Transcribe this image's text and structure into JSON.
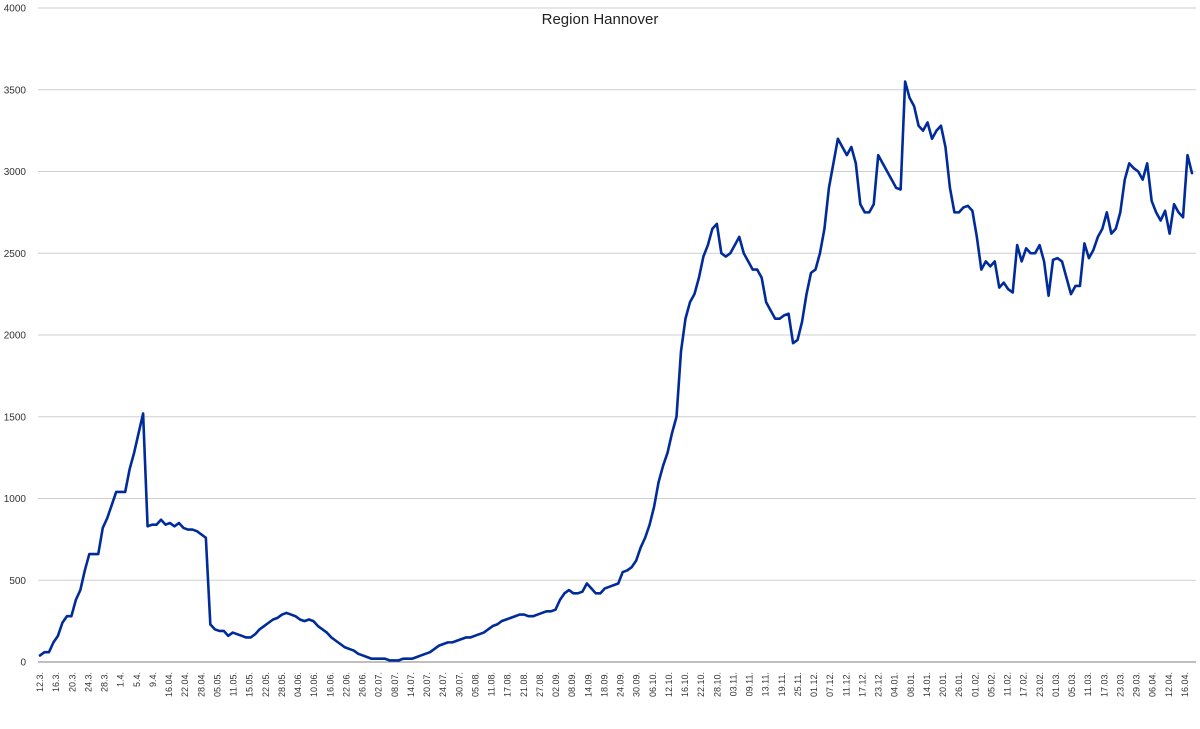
{
  "chart_data": {
    "type": "line",
    "title": "Region Hannover",
    "xlabel": "",
    "ylabel": "",
    "ylim": [
      0,
      4000
    ],
    "yticks": [
      0,
      500,
      1000,
      1500,
      2000,
      2500,
      3000,
      3500,
      4000
    ],
    "grid": true,
    "legend": "none",
    "colors": {
      "line": "#002b9a",
      "grid": "#cfcfcf",
      "axis": "#7f7f7f"
    },
    "tick_labels": [
      "12.3.",
      "16.3.",
      "20.3.",
      "24.3.",
      "28.3.",
      "1.4.",
      "5.4.",
      "9.4.",
      "16.04.",
      "22.04.",
      "28.04.",
      "05.05.",
      "11.05.",
      "15.05.",
      "22.05.",
      "28.05.",
      "04.06.",
      "10.06.",
      "16.06.",
      "22.06.",
      "26.06.",
      "02.07.",
      "08.07.",
      "14.07.",
      "20.07.",
      "24.07.",
      "30.07.",
      "05.08.",
      "11.08.",
      "17.08.",
      "21.08.",
      "27.08.",
      "02.09.",
      "08.09.",
      "14.09.",
      "18.09.",
      "24.09.",
      "30.09.",
      "06.10.",
      "12.10.",
      "16.10.",
      "22.10.",
      "28.10.",
      "03.11.",
      "09.11.",
      "13.11.",
      "19.11.",
      "25.11.",
      "01.12.",
      "07.12.",
      "11.12.",
      "17.12.",
      "23.12.",
      "04.01.",
      "08.01.",
      "14.01.",
      "20.01.",
      "26.01.",
      "01.02.",
      "05.02.",
      "11.02.",
      "17.02.",
      "23.02.",
      "01.03.",
      "05.03.",
      "11.03.",
      "17.03.",
      "23.03.",
      "29.03.",
      "06.04.",
      "12.04.",
      "16.04."
    ],
    "series": [
      {
        "values": [
          40,
          60,
          60,
          120,
          160,
          240,
          280,
          280,
          380,
          440,
          560,
          660,
          660,
          660,
          820,
          880,
          960,
          1040,
          1040,
          1040,
          1180,
          1280,
          1400,
          1520,
          830,
          840,
          840,
          870,
          840,
          850,
          830,
          850,
          820,
          810,
          810,
          800,
          780,
          760,
          230,
          200,
          190,
          190,
          160,
          180,
          170,
          160,
          150,
          150,
          170,
          200,
          220,
          240,
          260,
          270,
          290,
          300,
          290,
          280,
          260,
          250,
          260,
          250,
          220,
          200,
          180,
          150,
          130,
          110,
          90,
          80,
          70,
          50,
          40,
          30,
          20,
          20,
          20,
          20,
          10,
          10,
          10,
          20,
          20,
          20,
          30,
          40,
          50,
          60,
          80,
          100,
          110,
          120,
          120,
          130,
          140,
          150,
          150,
          160,
          170,
          180,
          200,
          220,
          230,
          250,
          260,
          270,
          280,
          290,
          290,
          280,
          280,
          290,
          300,
          310,
          310,
          320,
          380,
          420,
          440,
          420,
          420,
          430,
          480,
          450,
          420,
          420,
          450,
          460,
          470,
          480,
          550,
          560,
          580,
          620,
          700,
          760,
          840,
          950,
          1100,
          1200,
          1280,
          1400,
          1500,
          1900,
          2100,
          2200,
          2250,
          2350,
          2480,
          2550,
          2650,
          2680,
          2500,
          2480,
          2500,
          2550,
          2600,
          2500,
          2450,
          2400,
          2400,
          2350,
          2200,
          2150,
          2100,
          2100,
          2120,
          2130,
          1950,
          1970,
          2080,
          2250,
          2380,
          2400,
          2500,
          2650,
          2900,
          3050,
          3200,
          3150,
          3100,
          3150,
          3050,
          2800,
          2750,
          2750,
          2800,
          3100,
          3050,
          3000,
          2950,
          2900,
          2890,
          3550,
          3450,
          3400,
          3280,
          3250,
          3300,
          3200,
          3250,
          3280,
          3150,
          2900,
          2750,
          2750,
          2780,
          2790,
          2760,
          2600,
          2400,
          2450,
          2420,
          2450,
          2290,
          2320,
          2280,
          2260,
          2550,
          2450,
          2530,
          2500,
          2500,
          2550,
          2450,
          2240,
          2460,
          2470,
          2450,
          2350,
          2250,
          2300,
          2300,
          2560,
          2470,
          2520,
          2600,
          2650,
          2750,
          2620,
          2650,
          2750,
          2950,
          3050,
          3020,
          3000,
          2950,
          3050,
          2820,
          2750,
          2700,
          2760,
          2620,
          2800,
          2750,
          2720,
          3100,
          2990
        ]
      }
    ]
  }
}
